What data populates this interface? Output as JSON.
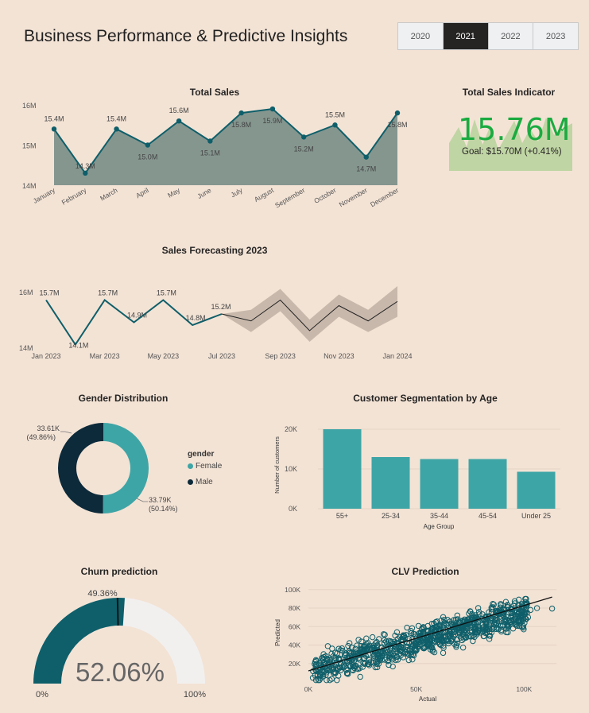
{
  "header": {
    "title": "Business Performance & Predictive Insights",
    "years": [
      "2020",
      "2021",
      "2022",
      "2023"
    ],
    "selected_year": "2021"
  },
  "colors": {
    "background": "#f3e3d5",
    "teal_dark": "#0e5f6a",
    "teal": "#3ea5a6",
    "navy": "#0c2a3a",
    "kpi_green": "#1aab40",
    "forecast_band": "#c8b8ab"
  },
  "kpi": {
    "title": "Total Sales Indicator",
    "value": "15.76M",
    "goal_text": "Goal: $15.70M (+0.41%)",
    "check_icon": "check-icon"
  },
  "gender_legend": {
    "title": "gender",
    "items": [
      "Female",
      "Male"
    ]
  },
  "gauge_labels": {
    "min": "0%",
    "max": "100%",
    "value_text": "52.06%",
    "target_text": "49.36%"
  },
  "chart_data": [
    {
      "id": "total_sales",
      "type": "area",
      "title": "Total Sales",
      "categories": [
        "January",
        "February",
        "March",
        "April",
        "May",
        "June",
        "July",
        "August",
        "September",
        "October",
        "November",
        "December"
      ],
      "values": [
        15.4,
        14.3,
        15.4,
        15.0,
        15.6,
        15.1,
        15.8,
        15.9,
        15.2,
        15.5,
        14.7,
        15.8
      ],
      "data_labels": [
        "15.4M",
        "14.3M",
        "15.4M",
        "15.0M",
        "15.6M",
        "15.1M",
        "15.8M",
        "15.9M",
        "15.2M",
        "15.5M",
        "14.7M",
        "15.8M"
      ],
      "y_ticks": [
        "14M",
        "15M",
        "16M"
      ],
      "ylim": [
        14,
        16
      ]
    },
    {
      "id": "sales_forecast",
      "type": "line",
      "title": "Sales Forecasting 2023",
      "x_ticks": [
        "Jan 2023",
        "Mar 2023",
        "May 2023",
        "Jul 2023",
        "Sep 2023",
        "Nov 2023",
        "Jan 2024"
      ],
      "y_ticks": [
        "14M",
        "16M"
      ],
      "ylim": [
        14,
        16
      ],
      "actual": {
        "months": [
          "Jan 2023",
          "Feb 2023",
          "Mar 2023",
          "Apr 2023",
          "May 2023",
          "Jun 2023",
          "Jul 2023"
        ],
        "values": [
          15.7,
          14.1,
          15.7,
          14.9,
          15.7,
          14.8,
          15.2
        ],
        "data_labels": [
          "15.7M",
          "14.1M",
          "15.7M",
          "14.9M",
          "15.7M",
          "14.8M",
          "15.2M"
        ]
      },
      "forecast": {
        "months": [
          "Jul 2023",
          "Aug 2023",
          "Sep 2023",
          "Oct 2023",
          "Nov 2023",
          "Dec 2023",
          "Jan 2024"
        ],
        "values": [
          15.2,
          14.95,
          15.7,
          14.6,
          15.5,
          14.95,
          15.65
        ],
        "upper": [
          15.2,
          15.35,
          16.1,
          15.0,
          15.9,
          15.35,
          16.2
        ],
        "lower": [
          15.2,
          14.55,
          15.3,
          14.2,
          15.1,
          14.55,
          15.1
        ]
      }
    },
    {
      "id": "gender_distribution",
      "type": "pie",
      "title": "Gender Distribution",
      "slices": [
        {
          "name": "Female",
          "value": 33.79,
          "label": "33.79K",
          "pct_label": "(50.14%)"
        },
        {
          "name": "Male",
          "value": 33.61,
          "label": "33.61K",
          "pct_label": "(49.86%)"
        }
      ]
    },
    {
      "id": "age_segmentation",
      "type": "bar",
      "title": "Customer Segmentation by Age",
      "categories": [
        "55+",
        "25-34",
        "35-44",
        "45-54",
        "Under 25"
      ],
      "values": [
        20000,
        13000,
        12500,
        12500,
        9300
      ],
      "xlabel": "Age Group",
      "ylabel": "Number of customers",
      "y_ticks": [
        "0K",
        "10K",
        "20K"
      ],
      "ylim": [
        0,
        22000
      ]
    },
    {
      "id": "churn_prediction",
      "type": "gauge",
      "title": "Churn prediction",
      "value": 52.06,
      "target": 49.36,
      "min": 0,
      "max": 100
    },
    {
      "id": "clv_prediction",
      "type": "scatter",
      "title": "CLV Prediction",
      "xlabel": "Actual",
      "ylabel": "Predicted",
      "x_ticks": [
        "0K",
        "50K",
        "100K"
      ],
      "y_ticks": [
        "20K",
        "40K",
        "60K",
        "80K",
        "100K"
      ],
      "xlim": [
        0,
        115000
      ],
      "ylim": [
        0,
        105000
      ],
      "trendline": [
        [
          0,
          12000
        ],
        [
          113000,
          92000
        ]
      ]
    }
  ]
}
